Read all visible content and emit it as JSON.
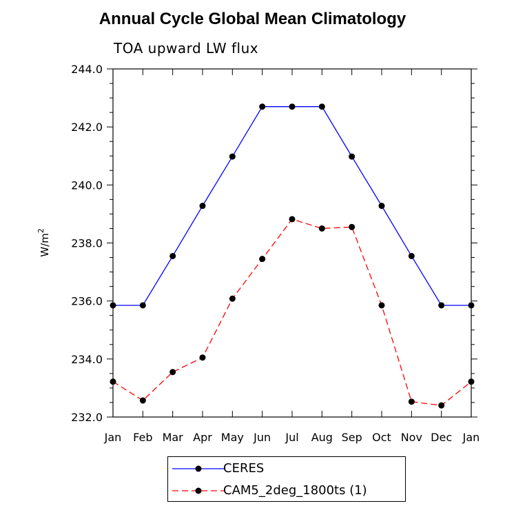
{
  "chart_data": {
    "type": "line",
    "title": "Annual Cycle Global Mean Climatology",
    "subtitle": "TOA upward LW flux",
    "ylabel": "W/m",
    "ylabel_sup": "2",
    "categories": [
      "Jan",
      "Feb",
      "Mar",
      "Apr",
      "May",
      "Jun",
      "Jul",
      "Aug",
      "Sep",
      "Oct",
      "Nov",
      "Dec",
      "Jan"
    ],
    "yticks": [
      "232.0",
      "234.0",
      "236.0",
      "238.0",
      "240.0",
      "242.0",
      "244.0"
    ],
    "ylim": [
      232,
      244
    ],
    "grid": false,
    "legend_position": "bottom",
    "series": [
      {
        "name": "CERES",
        "color": "#0000ff",
        "dash": "solid",
        "values": [
          235.85,
          235.85,
          237.55,
          239.28,
          240.98,
          242.7,
          242.7,
          242.7,
          240.98,
          239.28,
          237.55,
          235.85,
          235.85
        ]
      },
      {
        "name": "CAM5_2deg_1800ts (1)",
        "color": "#ff0000",
        "dash": "dashed",
        "values": [
          233.22,
          232.57,
          233.55,
          234.05,
          236.08,
          237.45,
          238.82,
          238.5,
          238.55,
          235.85,
          232.53,
          232.4,
          233.22
        ]
      }
    ]
  }
}
